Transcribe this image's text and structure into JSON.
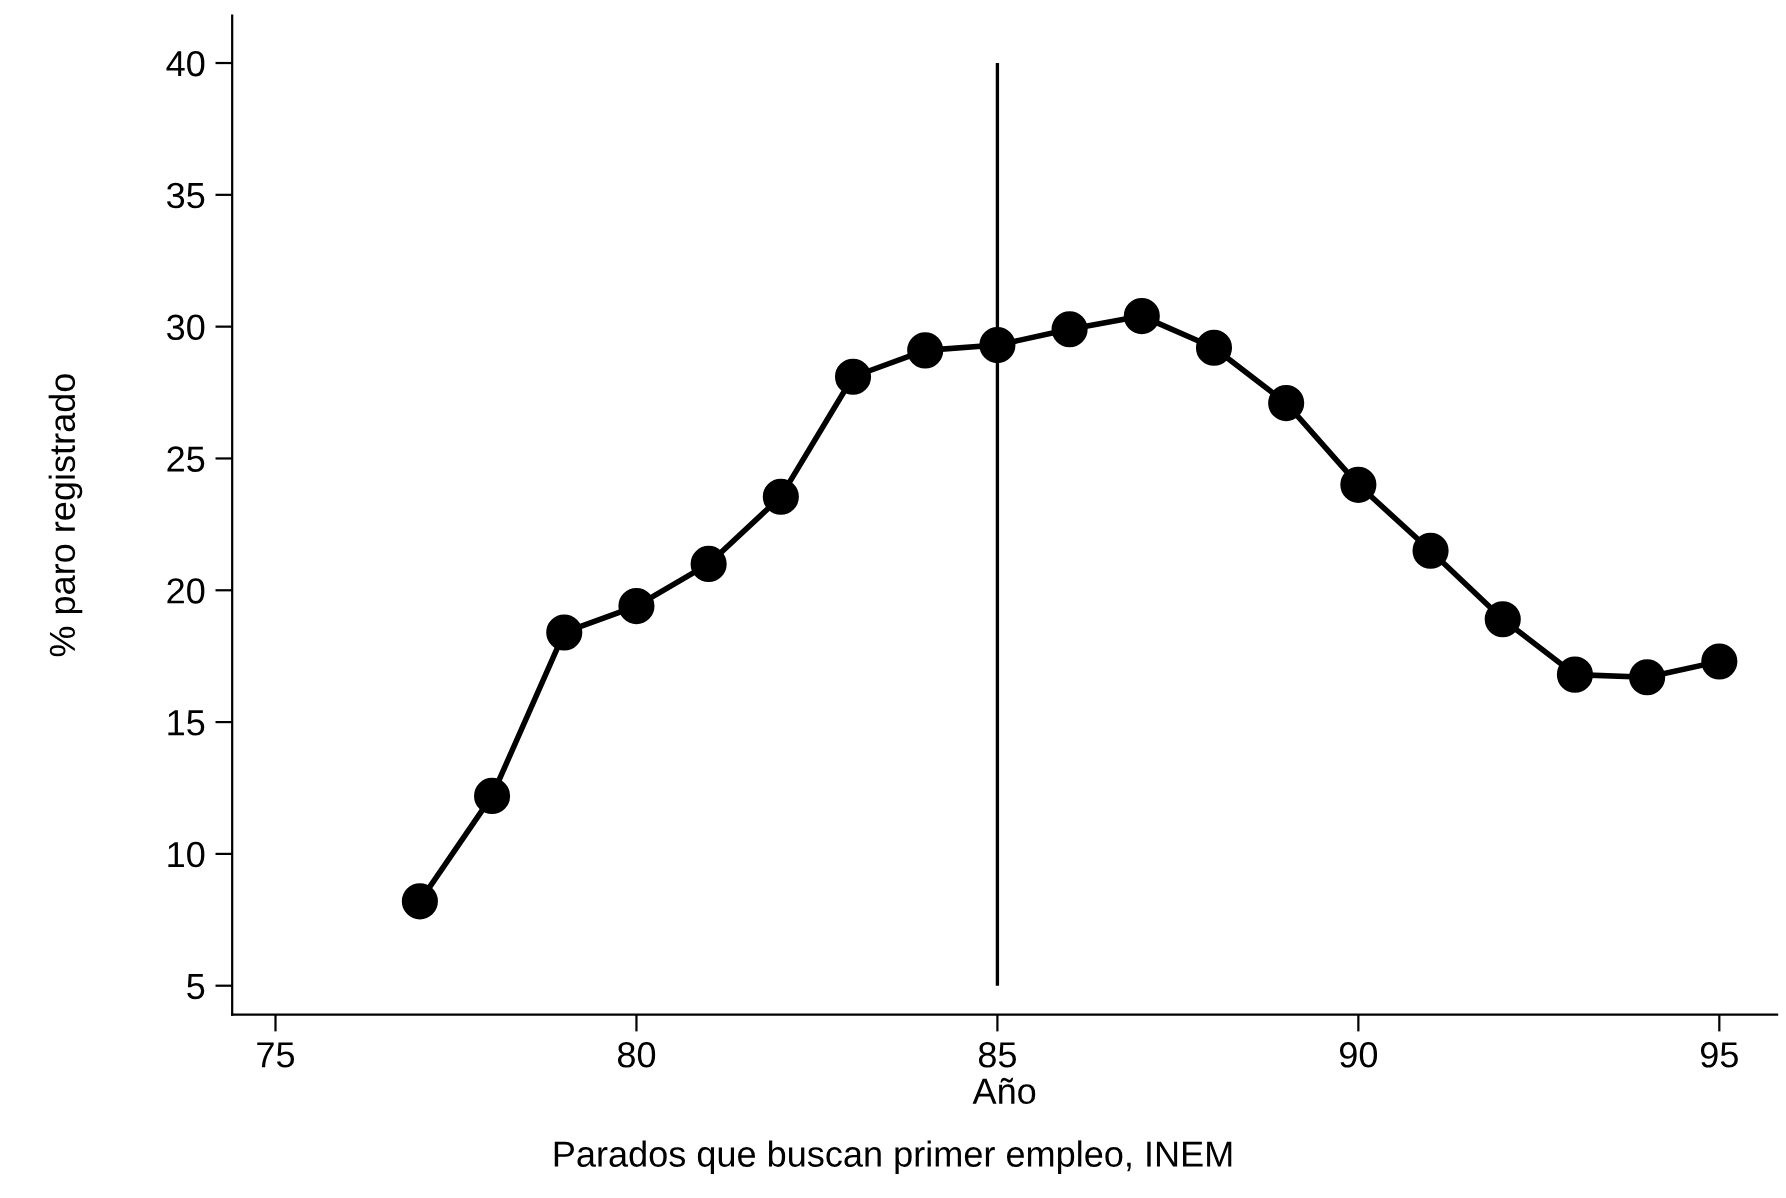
{
  "chart_data": {
    "type": "line",
    "xlabel": "Año",
    "ylabel": "% paro registrado",
    "annotations": [
      "Parados que buscan primer empleo, INEM"
    ],
    "x": [
      77,
      78,
      79,
      80,
      81,
      82,
      83,
      84,
      85,
      86,
      87,
      88,
      89,
      90,
      91,
      92,
      93,
      94,
      95
    ],
    "series": [
      {
        "color": "#000000",
        "values": [
          8.2,
          12.2,
          18.4,
          19.4,
          21.0,
          23.55,
          28.1,
          29.1,
          29.3,
          29.9,
          30.4,
          29.2,
          27.1,
          24.0,
          21.5,
          18.9,
          16.8,
          16.7,
          17.3
        ]
      }
    ],
    "marker": "circle",
    "line_style": "solid",
    "xlim": [
      74.4,
      95.8
    ],
    "ylim": [
      3.9,
      41.8
    ],
    "xticks": [
      75,
      80,
      85,
      90,
      95
    ],
    "yticks": [
      5,
      10,
      15,
      20,
      25,
      30,
      35,
      40
    ],
    "ref_lines": [
      {
        "axis": "x",
        "value": 85,
        "color": "#000000"
      }
    ],
    "grid": false,
    "legend": false
  }
}
